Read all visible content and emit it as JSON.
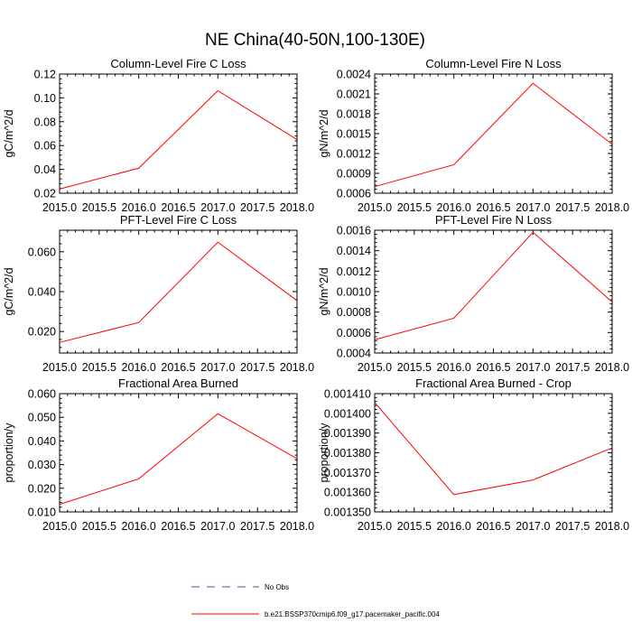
{
  "figure": {
    "title": "NE China(40-50N,100-130E)",
    "legend": [
      {
        "label": "No Obs",
        "color": "#5050a0",
        "style": "dashed"
      },
      {
        "label": "b.e21.BSSP370cmip6.f09_g17.pacemaker_pacific.004",
        "color": "#ff0000",
        "style": "solid"
      }
    ]
  },
  "chart_data": [
    {
      "type": "line",
      "title": "Column-Level Fire C Loss",
      "xlabel": "",
      "ylabel": "gC/m^2/d",
      "x": [
        2015,
        2016,
        2017,
        2018
      ],
      "series": [
        {
          "values": [
            0.0235,
            0.041,
            0.106,
            0.065
          ],
          "color": "#ff0000"
        }
      ],
      "xlim": [
        2015,
        2018
      ],
      "ylim": [
        0.02,
        0.12
      ],
      "xticks": [
        "2015.0",
        "2015.5",
        "2016.0",
        "2016.5",
        "2017.0",
        "2017.5",
        "2018.0"
      ],
      "yticks": [
        "0.02",
        "0.04",
        "0.06",
        "0.08",
        "0.10",
        "0.12"
      ],
      "grid": false
    },
    {
      "type": "line",
      "title": "Column-Level Fire N Loss",
      "xlabel": "",
      "ylabel": "gN/m^2/d",
      "x": [
        2015,
        2016,
        2017,
        2018
      ],
      "series": [
        {
          "values": [
            0.0007,
            0.00103,
            0.00226,
            0.00134
          ],
          "color": "#ff0000"
        }
      ],
      "xlim": [
        2015,
        2018
      ],
      "ylim": [
        0.0006,
        0.0024
      ],
      "xticks": [
        "2015.0",
        "2015.5",
        "2016.0",
        "2016.5",
        "2017.0",
        "2017.5",
        "2018.0"
      ],
      "yticks": [
        "0.0006",
        "0.0009",
        "0.0012",
        "0.0015",
        "0.0018",
        "0.0021",
        "0.0024"
      ],
      "grid": false
    },
    {
      "type": "line",
      "title": "PFT-Level Fire C Loss",
      "xlabel": "",
      "ylabel": "gC/m^2/d",
      "x": [
        2015,
        2016,
        2017,
        2018
      ],
      "series": [
        {
          "values": [
            0.0145,
            0.0245,
            0.0648,
            0.0355
          ],
          "color": "#ff0000"
        }
      ],
      "xlim": [
        2015,
        2018
      ],
      "ylim": [
        0.0092,
        0.0708
      ],
      "xticks": [
        "2015.0",
        "2015.5",
        "2016.0",
        "2016.5",
        "2017.0",
        "2017.5",
        "2018.0"
      ],
      "yticks": [
        "0.020",
        "0.040",
        "0.060"
      ],
      "grid": false
    },
    {
      "type": "line",
      "title": "PFT-Level Fire N Loss",
      "xlabel": "",
      "ylabel": "gN/m^2/d",
      "x": [
        2015,
        2016,
        2017,
        2018
      ],
      "series": [
        {
          "values": [
            0.00053,
            0.00074,
            0.00158,
            0.0009
          ],
          "color": "#ff0000"
        }
      ],
      "xlim": [
        2015,
        2018
      ],
      "ylim": [
        0.0004,
        0.0016
      ],
      "xticks": [
        "2015.0",
        "2015.5",
        "2016.0",
        "2016.5",
        "2017.0",
        "2017.5",
        "2018.0"
      ],
      "yticks": [
        "0.0004",
        "0.0006",
        "0.0008",
        "0.0010",
        "0.0012",
        "0.0014",
        "0.0016"
      ],
      "grid": false
    },
    {
      "type": "line",
      "title": "Fractional Area Burned",
      "xlabel": "",
      "ylabel": "proportion/y",
      "x": [
        2015,
        2016,
        2017,
        2018
      ],
      "series": [
        {
          "values": [
            0.0132,
            0.024,
            0.0515,
            0.0325
          ],
          "color": "#ff0000"
        }
      ],
      "xlim": [
        2015,
        2018
      ],
      "ylim": [
        0.01,
        0.06
      ],
      "xticks": [
        "2015.0",
        "2015.5",
        "2016.0",
        "2016.5",
        "2017.0",
        "2017.5",
        "2018.0"
      ],
      "yticks": [
        "0.010",
        "0.020",
        "0.030",
        "0.040",
        "0.050",
        "0.060"
      ],
      "grid": false
    },
    {
      "type": "line",
      "title": "Fractional Area Burned - Crop",
      "xlabel": "",
      "ylabel": "proportion/y",
      "x": [
        2015,
        2016,
        2017,
        2018
      ],
      "series": [
        {
          "values": [
            0.0014055,
            0.0013588,
            0.0013662,
            0.0013825
          ],
          "color": "#ff0000"
        }
      ],
      "xlim": [
        2015,
        2018
      ],
      "ylim": [
        0.00135,
        0.00141
      ],
      "xticks": [
        "2015.0",
        "2015.5",
        "2016.0",
        "2016.5",
        "2017.0",
        "2017.5",
        "2018.0"
      ],
      "yticks": [
        "0.001350",
        "0.001360",
        "0.001370",
        "0.001380",
        "0.001390",
        "0.001400",
        "0.001410"
      ],
      "grid": false
    }
  ]
}
